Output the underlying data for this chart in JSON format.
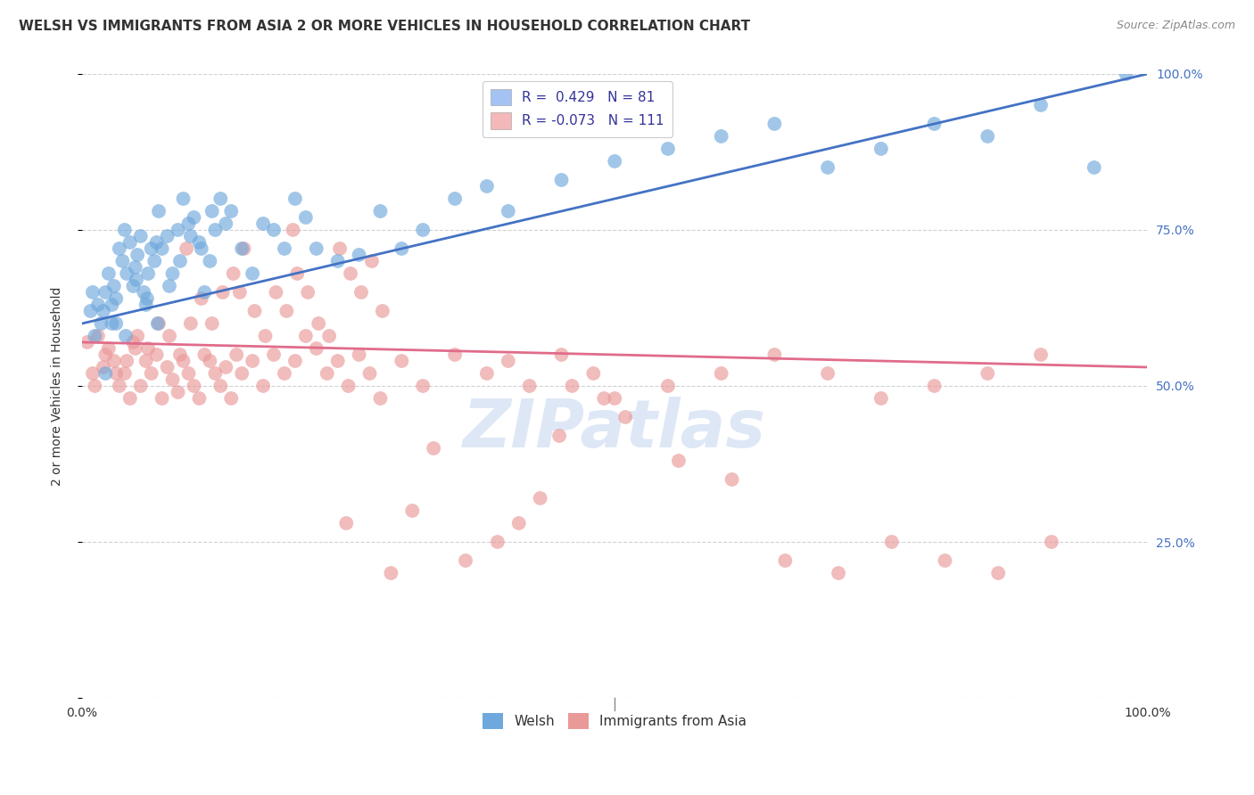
{
  "title": "WELSH VS IMMIGRANTS FROM ASIA 2 OR MORE VEHICLES IN HOUSEHOLD CORRELATION CHART",
  "source": "Source: ZipAtlas.com",
  "ylabel": "2 or more Vehicles in Household",
  "xlim": [
    0,
    100
  ],
  "ylim": [
    0,
    100
  ],
  "welsh_R": 0.429,
  "welsh_N": 81,
  "asia_R": -0.073,
  "asia_N": 111,
  "welsh_color": "#6fa8dc",
  "asia_color": "#ea9999",
  "welsh_line_color": "#4472c4",
  "asia_line_color": "#e06c8a",
  "legend_box_color_welsh": "#a4c2f4",
  "legend_box_color_asia": "#f4b8b8",
  "watermark": "ZIPatlas",
  "watermark_color": "#c8d8f0",
  "background_color": "#ffffff",
  "welsh_line_x0": 0,
  "welsh_line_y0": 60,
  "welsh_line_x1": 100,
  "welsh_line_y1": 100,
  "asia_line_x0": 0,
  "asia_line_y0": 57,
  "asia_line_x1": 100,
  "asia_line_y1": 53,
  "welsh_scatter_x": [
    0.8,
    1.0,
    1.2,
    1.5,
    1.8,
    2.0,
    2.2,
    2.5,
    2.8,
    3.0,
    3.2,
    3.5,
    3.8,
    4.0,
    4.2,
    4.5,
    4.8,
    5.0,
    5.2,
    5.5,
    5.8,
    6.0,
    6.2,
    6.5,
    6.8,
    7.0,
    7.2,
    7.5,
    8.0,
    8.5,
    9.0,
    9.5,
    10.0,
    10.5,
    11.0,
    11.5,
    12.0,
    12.5,
    13.0,
    14.0,
    15.0,
    16.0,
    17.0,
    18.0,
    19.0,
    20.0,
    21.0,
    22.0,
    24.0,
    26.0,
    28.0,
    30.0,
    32.0,
    35.0,
    38.0,
    40.0,
    45.0,
    50.0,
    55.0,
    60.0,
    65.0,
    70.0,
    75.0,
    80.0,
    85.0,
    90.0,
    95.0,
    98.0,
    2.2,
    2.8,
    3.2,
    4.1,
    5.1,
    6.1,
    7.1,
    8.2,
    9.2,
    10.2,
    11.2,
    12.2,
    13.5
  ],
  "welsh_scatter_y": [
    62,
    65,
    58,
    63,
    60,
    62,
    65,
    68,
    63,
    66,
    60,
    72,
    70,
    75,
    68,
    73,
    66,
    69,
    71,
    74,
    65,
    63,
    68,
    72,
    70,
    73,
    78,
    72,
    74,
    68,
    75,
    80,
    76,
    77,
    73,
    65,
    70,
    75,
    80,
    78,
    72,
    68,
    76,
    75,
    72,
    80,
    77,
    72,
    70,
    71,
    78,
    72,
    75,
    80,
    82,
    78,
    83,
    86,
    88,
    90,
    92,
    85,
    88,
    92,
    90,
    95,
    85,
    100,
    52,
    60,
    64,
    58,
    67,
    64,
    60,
    66,
    70,
    74,
    72,
    78,
    76
  ],
  "asia_scatter_x": [
    0.5,
    1.0,
    1.5,
    2.0,
    2.5,
    3.0,
    3.5,
    4.0,
    4.5,
    5.0,
    5.5,
    6.0,
    6.5,
    7.0,
    7.5,
    8.0,
    8.5,
    9.0,
    9.5,
    10.0,
    10.5,
    11.0,
    11.5,
    12.0,
    12.5,
    13.0,
    13.5,
    14.0,
    14.5,
    15.0,
    16.0,
    17.0,
    18.0,
    19.0,
    20.0,
    21.0,
    22.0,
    23.0,
    24.0,
    25.0,
    26.0,
    27.0,
    28.0,
    30.0,
    32.0,
    35.0,
    38.0,
    40.0,
    42.0,
    45.0,
    48.0,
    50.0,
    55.0,
    60.0,
    65.0,
    70.0,
    75.0,
    80.0,
    85.0,
    90.0,
    1.2,
    2.2,
    3.2,
    4.2,
    5.2,
    6.2,
    7.2,
    8.2,
    9.2,
    10.2,
    11.2,
    12.2,
    13.2,
    14.2,
    15.2,
    16.2,
    17.2,
    18.2,
    19.2,
    20.2,
    21.2,
    22.2,
    23.2,
    24.2,
    25.2,
    26.2,
    27.2,
    28.2,
    29.0,
    31.0,
    33.0,
    36.0,
    39.0,
    41.0,
    43.0,
    46.0,
    49.0,
    51.0,
    56.0,
    61.0,
    66.0,
    71.0,
    76.0,
    81.0,
    86.0,
    91.0,
    4.8,
    9.8,
    14.8,
    19.8,
    24.8,
    44.8
  ],
  "asia_scatter_y": [
    57,
    52,
    58,
    53,
    56,
    54,
    50,
    52,
    48,
    56,
    50,
    54,
    52,
    55,
    48,
    53,
    51,
    49,
    54,
    52,
    50,
    48,
    55,
    54,
    52,
    50,
    53,
    48,
    55,
    52,
    54,
    50,
    55,
    52,
    54,
    58,
    56,
    52,
    54,
    50,
    55,
    52,
    48,
    54,
    50,
    55,
    52,
    54,
    50,
    55,
    52,
    48,
    50,
    52,
    55,
    52,
    48,
    50,
    52,
    55,
    50,
    55,
    52,
    54,
    58,
    56,
    60,
    58,
    55,
    60,
    64,
    60,
    65,
    68,
    72,
    62,
    58,
    65,
    62,
    68,
    65,
    60,
    58,
    72,
    68,
    65,
    70,
    62,
    20,
    30,
    40,
    22,
    25,
    28,
    32,
    50,
    48,
    45,
    38,
    35,
    22,
    20,
    25,
    22,
    20,
    25,
    57,
    72,
    65,
    75,
    28,
    42
  ],
  "title_fontsize": 11,
  "source_fontsize": 9,
  "ylabel_fontsize": 10,
  "tick_fontsize": 10,
  "legend_fontsize": 11
}
